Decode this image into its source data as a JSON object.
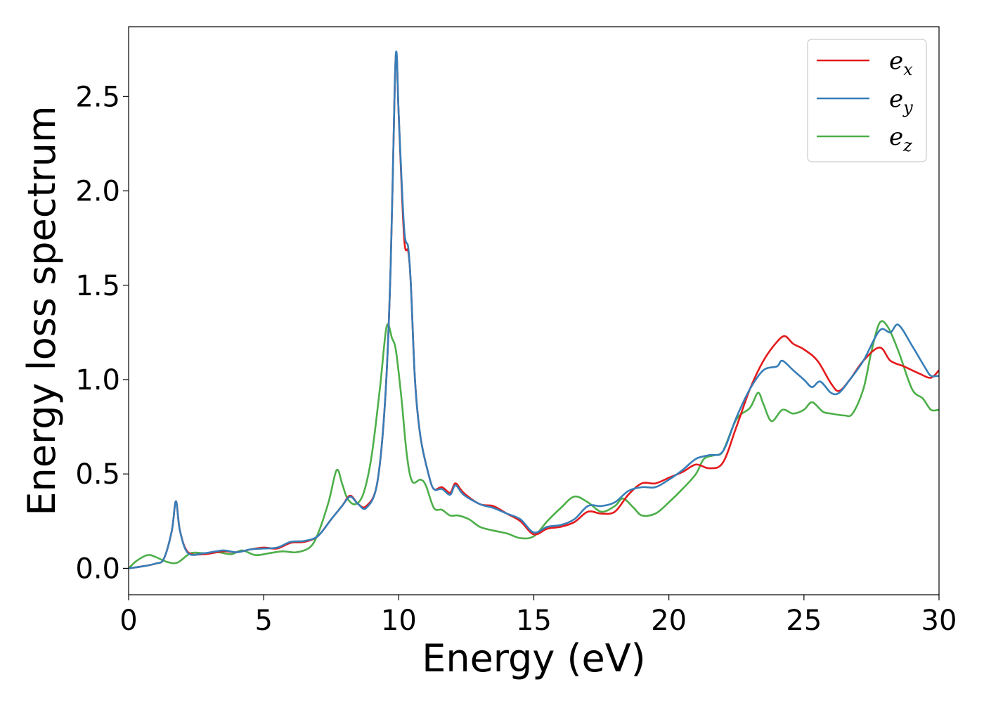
{
  "chart_data": {
    "type": "line",
    "title": "",
    "xlabel": "Energy (eV)",
    "ylabel": "Energy loss spectrum",
    "xlim": [
      0,
      30
    ],
    "ylim": [
      -0.14,
      2.87
    ],
    "xticks": [
      "0",
      "5",
      "10",
      "15",
      "20",
      "25",
      "30"
    ],
    "yticks": [
      "0.0",
      "0.5",
      "1.0",
      "1.5",
      "2.0",
      "2.5"
    ],
    "grid": false,
    "legend_position": "top-right",
    "series": [
      {
        "name": "e_x",
        "legend_base": "e",
        "legend_sub": "x",
        "color": "#e41a1c",
        "points": [
          [
            0,
            0
          ],
          [
            0.5,
            0.01
          ],
          [
            1.0,
            0.025
          ],
          [
            1.3,
            0.05
          ],
          [
            1.6,
            0.2
          ],
          [
            1.75,
            0.355
          ],
          [
            1.9,
            0.2
          ],
          [
            2.2,
            0.085
          ],
          [
            2.8,
            0.075
          ],
          [
            3.5,
            0.09
          ],
          [
            4.0,
            0.085
          ],
          [
            4.5,
            0.1
          ],
          [
            5.0,
            0.11
          ],
          [
            5.5,
            0.105
          ],
          [
            6.0,
            0.135
          ],
          [
            6.5,
            0.14
          ],
          [
            7.0,
            0.17
          ],
          [
            7.5,
            0.26
          ],
          [
            7.9,
            0.33
          ],
          [
            8.2,
            0.385
          ],
          [
            8.5,
            0.34
          ],
          [
            8.8,
            0.33
          ],
          [
            9.2,
            0.45
          ],
          [
            9.5,
            0.9
          ],
          [
            9.7,
            1.6
          ],
          [
            9.85,
            2.55
          ],
          [
            9.92,
            2.72
          ],
          [
            10.0,
            2.4
          ],
          [
            10.2,
            1.75
          ],
          [
            10.35,
            1.68
          ],
          [
            10.45,
            1.5
          ],
          [
            10.6,
            1.0
          ],
          [
            10.8,
            0.7
          ],
          [
            11.1,
            0.5
          ],
          [
            11.3,
            0.42
          ],
          [
            11.6,
            0.43
          ],
          [
            11.9,
            0.4
          ],
          [
            12.1,
            0.45
          ],
          [
            12.4,
            0.4
          ],
          [
            13.0,
            0.34
          ],
          [
            13.5,
            0.33
          ],
          [
            14.0,
            0.29
          ],
          [
            14.5,
            0.25
          ],
          [
            15.0,
            0.18
          ],
          [
            15.5,
            0.21
          ],
          [
            16.0,
            0.22
          ],
          [
            16.5,
            0.245
          ],
          [
            17.0,
            0.3
          ],
          [
            17.5,
            0.29
          ],
          [
            18.0,
            0.3
          ],
          [
            18.5,
            0.39
          ],
          [
            19.0,
            0.45
          ],
          [
            19.5,
            0.45
          ],
          [
            20.0,
            0.48
          ],
          [
            20.5,
            0.51
          ],
          [
            21.0,
            0.55
          ],
          [
            21.5,
            0.53
          ],
          [
            22.0,
            0.56
          ],
          [
            22.5,
            0.75
          ],
          [
            23.0,
            0.95
          ],
          [
            23.5,
            1.1
          ],
          [
            24.0,
            1.2
          ],
          [
            24.3,
            1.23
          ],
          [
            24.6,
            1.19
          ],
          [
            25.0,
            1.16
          ],
          [
            25.5,
            1.1
          ],
          [
            26.0,
            0.98
          ],
          [
            26.3,
            0.94
          ],
          [
            26.7,
            1.0
          ],
          [
            27.2,
            1.1
          ],
          [
            27.8,
            1.17
          ],
          [
            28.2,
            1.1
          ],
          [
            28.7,
            1.07
          ],
          [
            29.3,
            1.03
          ],
          [
            29.7,
            1.01
          ],
          [
            30.0,
            1.05
          ]
        ]
      },
      {
        "name": "e_y",
        "legend_base": "e",
        "legend_sub": "y",
        "color": "#377eb8",
        "points": [
          [
            0,
            0
          ],
          [
            0.5,
            0.01
          ],
          [
            1.0,
            0.025
          ],
          [
            1.3,
            0.05
          ],
          [
            1.6,
            0.2
          ],
          [
            1.75,
            0.355
          ],
          [
            1.9,
            0.2
          ],
          [
            2.2,
            0.08
          ],
          [
            2.8,
            0.08
          ],
          [
            3.5,
            0.095
          ],
          [
            4.0,
            0.085
          ],
          [
            4.5,
            0.1
          ],
          [
            5.0,
            0.105
          ],
          [
            5.5,
            0.11
          ],
          [
            6.0,
            0.14
          ],
          [
            6.5,
            0.145
          ],
          [
            7.0,
            0.17
          ],
          [
            7.5,
            0.26
          ],
          [
            7.9,
            0.33
          ],
          [
            8.2,
            0.38
          ],
          [
            8.5,
            0.34
          ],
          [
            8.8,
            0.32
          ],
          [
            9.2,
            0.45
          ],
          [
            9.5,
            0.9
          ],
          [
            9.7,
            1.6
          ],
          [
            9.85,
            2.55
          ],
          [
            9.92,
            2.73
          ],
          [
            10.0,
            2.4
          ],
          [
            10.2,
            1.8
          ],
          [
            10.35,
            1.7
          ],
          [
            10.45,
            1.5
          ],
          [
            10.6,
            1.0
          ],
          [
            10.8,
            0.7
          ],
          [
            11.1,
            0.5
          ],
          [
            11.3,
            0.42
          ],
          [
            11.6,
            0.42
          ],
          [
            11.9,
            0.39
          ],
          [
            12.1,
            0.44
          ],
          [
            12.4,
            0.39
          ],
          [
            13.0,
            0.34
          ],
          [
            13.5,
            0.32
          ],
          [
            14.0,
            0.29
          ],
          [
            14.5,
            0.26
          ],
          [
            15.0,
            0.19
          ],
          [
            15.5,
            0.22
          ],
          [
            16.0,
            0.23
          ],
          [
            16.5,
            0.26
          ],
          [
            17.0,
            0.33
          ],
          [
            17.5,
            0.33
          ],
          [
            18.0,
            0.35
          ],
          [
            18.5,
            0.41
          ],
          [
            19.0,
            0.43
          ],
          [
            19.5,
            0.43
          ],
          [
            20.0,
            0.47
          ],
          [
            20.5,
            0.52
          ],
          [
            21.0,
            0.58
          ],
          [
            21.5,
            0.6
          ],
          [
            22.0,
            0.62
          ],
          [
            22.5,
            0.8
          ],
          [
            23.0,
            0.95
          ],
          [
            23.5,
            1.05
          ],
          [
            24.0,
            1.07
          ],
          [
            24.2,
            1.1
          ],
          [
            24.6,
            1.05
          ],
          [
            25.0,
            1.0
          ],
          [
            25.3,
            0.96
          ],
          [
            25.6,
            0.99
          ],
          [
            26.0,
            0.93
          ],
          [
            26.3,
            0.93
          ],
          [
            26.7,
            1.0
          ],
          [
            27.2,
            1.1
          ],
          [
            27.8,
            1.26
          ],
          [
            28.2,
            1.25
          ],
          [
            28.5,
            1.29
          ],
          [
            29.0,
            1.18
          ],
          [
            29.5,
            1.06
          ],
          [
            29.7,
            1.02
          ],
          [
            30.0,
            1.02
          ]
        ]
      },
      {
        "name": "e_z",
        "legend_base": "e",
        "legend_sub": "z",
        "color": "#4daf4a",
        "points": [
          [
            0,
            0
          ],
          [
            0.3,
            0.04
          ],
          [
            0.7,
            0.07
          ],
          [
            1.0,
            0.06
          ],
          [
            1.4,
            0.035
          ],
          [
            1.8,
            0.03
          ],
          [
            2.3,
            0.08
          ],
          [
            2.8,
            0.08
          ],
          [
            3.3,
            0.085
          ],
          [
            3.8,
            0.075
          ],
          [
            4.2,
            0.095
          ],
          [
            4.7,
            0.07
          ],
          [
            5.2,
            0.08
          ],
          [
            5.7,
            0.09
          ],
          [
            6.2,
            0.085
          ],
          [
            6.7,
            0.11
          ],
          [
            7.0,
            0.18
          ],
          [
            7.4,
            0.35
          ],
          [
            7.7,
            0.52
          ],
          [
            7.9,
            0.45
          ],
          [
            8.1,
            0.37
          ],
          [
            8.4,
            0.34
          ],
          [
            8.7,
            0.4
          ],
          [
            9.0,
            0.6
          ],
          [
            9.3,
            0.95
          ],
          [
            9.55,
            1.28
          ],
          [
            9.75,
            1.22
          ],
          [
            9.9,
            1.15
          ],
          [
            10.1,
            0.9
          ],
          [
            10.3,
            0.6
          ],
          [
            10.5,
            0.46
          ],
          [
            10.8,
            0.47
          ],
          [
            11.0,
            0.44
          ],
          [
            11.3,
            0.32
          ],
          [
            11.6,
            0.31
          ],
          [
            11.9,
            0.28
          ],
          [
            12.2,
            0.28
          ],
          [
            12.6,
            0.26
          ],
          [
            13.0,
            0.22
          ],
          [
            13.5,
            0.2
          ],
          [
            14.0,
            0.185
          ],
          [
            14.5,
            0.16
          ],
          [
            15.0,
            0.17
          ],
          [
            15.5,
            0.25
          ],
          [
            16.0,
            0.32
          ],
          [
            16.5,
            0.38
          ],
          [
            17.0,
            0.35
          ],
          [
            17.5,
            0.3
          ],
          [
            18.0,
            0.33
          ],
          [
            18.3,
            0.37
          ],
          [
            18.7,
            0.32
          ],
          [
            19.0,
            0.28
          ],
          [
            19.5,
            0.29
          ],
          [
            20.0,
            0.35
          ],
          [
            20.5,
            0.42
          ],
          [
            21.0,
            0.5
          ],
          [
            21.3,
            0.58
          ],
          [
            21.7,
            0.6
          ],
          [
            22.0,
            0.62
          ],
          [
            22.5,
            0.79
          ],
          [
            23.0,
            0.85
          ],
          [
            23.3,
            0.93
          ],
          [
            23.5,
            0.87
          ],
          [
            23.8,
            0.78
          ],
          [
            24.2,
            0.84
          ],
          [
            24.6,
            0.82
          ],
          [
            25.0,
            0.84
          ],
          [
            25.3,
            0.88
          ],
          [
            25.7,
            0.83
          ],
          [
            26.0,
            0.82
          ],
          [
            26.5,
            0.81
          ],
          [
            26.8,
            0.82
          ],
          [
            27.2,
            0.95
          ],
          [
            27.5,
            1.15
          ],
          [
            27.8,
            1.3
          ],
          [
            28.1,
            1.28
          ],
          [
            28.5,
            1.15
          ],
          [
            29.0,
            0.95
          ],
          [
            29.4,
            0.9
          ],
          [
            29.7,
            0.84
          ],
          [
            30.0,
            0.84
          ]
        ]
      }
    ]
  }
}
